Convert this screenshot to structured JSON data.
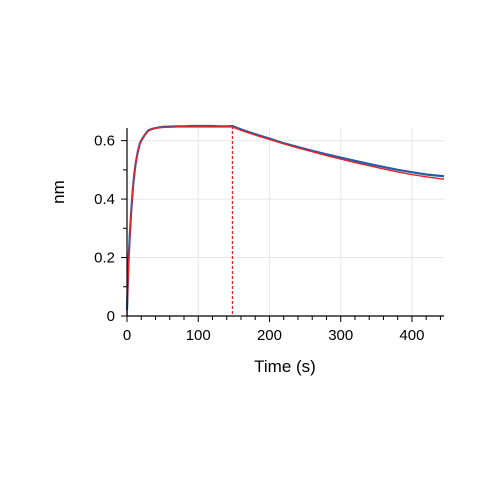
{
  "chart_data": {
    "type": "line",
    "xlabel": "Time (s)",
    "ylabel": "nm",
    "xlim": [
      0,
      445
    ],
    "ylim": [
      0,
      0.65
    ],
    "xticks": [
      0,
      100,
      200,
      300,
      400
    ],
    "xtick_labels": [
      "0",
      "100",
      "200",
      "300",
      "400"
    ],
    "yticks": [
      0,
      0.2,
      0.4,
      0.6
    ],
    "ytick_labels": [
      "0",
      "0.2",
      "0.4",
      "0.6"
    ],
    "grid": true,
    "marker_line": {
      "x": 148,
      "style": "dashed",
      "color": "#e8202a"
    },
    "series": [
      {
        "color": "#1f5fa8",
        "x": [
          0,
          1,
          2,
          4,
          6,
          8,
          10,
          12,
          15,
          18,
          20,
          25,
          30,
          35,
          40,
          45,
          50,
          60,
          70,
          80,
          90,
          100,
          110,
          120,
          130,
          140,
          148,
          155,
          165,
          175,
          185,
          200,
          220,
          240,
          260,
          280,
          300,
          320,
          340,
          360,
          380,
          400,
          420,
          445
        ],
        "y": [
          0.02,
          0.1,
          0.18,
          0.28,
          0.36,
          0.43,
          0.48,
          0.52,
          0.56,
          0.59,
          0.6,
          0.62,
          0.635,
          0.64,
          0.643,
          0.645,
          0.647,
          0.648,
          0.649,
          0.649,
          0.65,
          0.65,
          0.65,
          0.65,
          0.649,
          0.649,
          0.65,
          0.643,
          0.634,
          0.626,
          0.618,
          0.607,
          0.591,
          0.578,
          0.565,
          0.553,
          0.542,
          0.531,
          0.52,
          0.51,
          0.5,
          0.492,
          0.484,
          0.478
        ]
      },
      {
        "color": "#e8202a",
        "x": [
          0,
          1,
          2,
          4,
          6,
          8,
          10,
          12,
          15,
          18,
          20,
          25,
          30,
          35,
          40,
          45,
          50,
          60,
          70,
          80,
          90,
          100,
          110,
          120,
          130,
          140,
          148,
          155,
          165,
          175,
          185,
          200,
          220,
          240,
          260,
          280,
          300,
          320,
          340,
          360,
          380,
          400,
          420,
          445
        ],
        "y": [
          0.0,
          0.08,
          0.16,
          0.27,
          0.36,
          0.43,
          0.48,
          0.52,
          0.56,
          0.59,
          0.6,
          0.62,
          0.633,
          0.639,
          0.642,
          0.644,
          0.645,
          0.646,
          0.647,
          0.647,
          0.647,
          0.647,
          0.647,
          0.647,
          0.647,
          0.647,
          0.647,
          0.64,
          0.631,
          0.623,
          0.615,
          0.604,
          0.589,
          0.575,
          0.562,
          0.549,
          0.537,
          0.525,
          0.514,
          0.503,
          0.493,
          0.484,
          0.476,
          0.468
        ]
      }
    ]
  }
}
